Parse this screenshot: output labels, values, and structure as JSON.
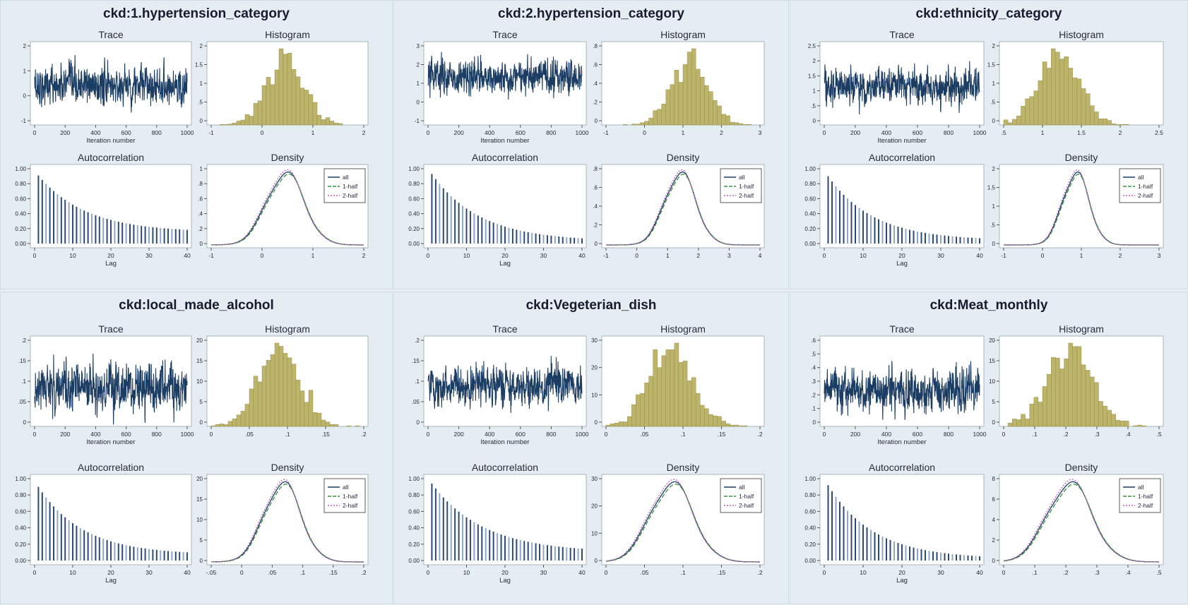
{
  "figure": {
    "subplot_titles": {
      "trace": "Trace",
      "histogram": "Histogram",
      "autocorrelation": "Autocorrelation",
      "density": "Density"
    },
    "trace_xlabel": "Iteration number",
    "ac_xlabel": "Lag",
    "legend_labels": [
      "all",
      "1-half",
      "2-half"
    ],
    "colors": {
      "trace": "#1c3d63",
      "histogram": "#bdb46b",
      "histogram_edge": "#8f8741",
      "acf": "#2b4a78",
      "density_all": "#1c3d63",
      "density_half1": "#3f8f3f",
      "density_half2": "#c060c0",
      "plot_bg": "#ffffff"
    }
  },
  "chart_data": [
    {
      "type": "bar",
      "title": "ckd:1.hypertension_category",
      "trace": {
        "xlim": [
          0,
          1000
        ],
        "xticks": [
          "0",
          "200",
          "400",
          "600",
          "800",
          "1000"
        ],
        "ylim": [
          -1.1,
          2.2
        ],
        "yticks": [
          "-1",
          "0",
          "1",
          "2"
        ],
        "mean": 0.45,
        "sd": 0.42,
        "phi": 0.3
      },
      "histogram": {
        "xlim": [
          -1.2,
          2.2
        ],
        "xticks": [
          "-1",
          "0",
          "1",
          "2"
        ],
        "yticks": [
          "0",
          ".5",
          "1",
          "1.5",
          "2"
        ],
        "center": 0.45,
        "sd": 0.42
      },
      "autocorrelation": {
        "xticks": [
          "0",
          "10",
          "20",
          "30",
          "40"
        ],
        "yticks": [
          "0.00",
          "0.20",
          "0.40",
          "0.60",
          "0.80",
          "1.00"
        ],
        "first": 0.91,
        "floor": 0.15,
        "rate": 0.08
      },
      "density": {
        "xlim": [
          -1.2,
          2.2
        ],
        "xticks": [
          "-1",
          "0",
          "1",
          "2"
        ],
        "yticks": [
          "0",
          ".2",
          ".4",
          ".6",
          ".8",
          "1"
        ],
        "center": 0.45,
        "sd": 0.42
      }
    },
    {
      "type": "bar",
      "title": "ckd:2.hypertension_category",
      "trace": {
        "xlim": [
          0,
          1000
        ],
        "xticks": [
          "0",
          "200",
          "400",
          "600",
          "800",
          "1000"
        ],
        "ylim": [
          -1.4,
          3.4
        ],
        "yticks": [
          "-1",
          "0",
          "1",
          "2",
          "3"
        ],
        "mean": 1.4,
        "sd": 0.55,
        "phi": 0.3
      },
      "histogram": {
        "xlim": [
          -1.1,
          3.5
        ],
        "xticks": [
          "-1",
          "0",
          "1",
          "2",
          "3"
        ],
        "yticks": [
          "0",
          ".2",
          ".4",
          ".6",
          ".8"
        ],
        "center": 1.4,
        "sd": 0.55
      },
      "autocorrelation": {
        "xticks": [
          "0",
          "10",
          "20",
          "30",
          "40"
        ],
        "yticks": [
          "0.00",
          "0.20",
          "0.40",
          "0.60",
          "0.80",
          "1.00"
        ],
        "first": 0.93,
        "floor": 0.03,
        "rate": 0.08
      },
      "density": {
        "xlim": [
          -1.2,
          4.2
        ],
        "xticks": [
          "-1",
          "0",
          "1",
          "2",
          "3",
          "4"
        ],
        "yticks": [
          "0",
          ".2",
          ".4",
          ".6",
          ".8"
        ],
        "center": 1.4,
        "sd": 0.55
      }
    },
    {
      "type": "bar",
      "title": "ckd:ethnicity_category",
      "trace": {
        "xlim": [
          0,
          1000
        ],
        "xticks": [
          "0",
          "200",
          "400",
          "600",
          "800",
          "1000"
        ],
        "ylim": [
          -0.6,
          2.6
        ],
        "yticks": [
          "0",
          ".5",
          "1",
          "1.5",
          "2",
          "2.5"
        ],
        "mean": 0.9,
        "sd": 0.38,
        "phi": 0.3
      },
      "histogram": {
        "xlim": [
          -0.1,
          2.6
        ],
        "xticks": [
          ".5",
          "1",
          "1.5",
          "2",
          "2.5"
        ],
        "yticks": [
          "0",
          ".5",
          "1",
          "1.5",
          "2"
        ],
        "center": 0.85,
        "sd": 0.36
      },
      "autocorrelation": {
        "xticks": [
          "0",
          "10",
          "20",
          "30",
          "40"
        ],
        "yticks": [
          "0.00",
          "0.20",
          "0.40",
          "0.60",
          "0.80",
          "1.00"
        ],
        "first": 0.9,
        "floor": 0.04,
        "rate": 0.085
      },
      "density": {
        "xlim": [
          -1.1,
          3.1
        ],
        "xticks": [
          "-1",
          "0",
          "1",
          "2",
          "3"
        ],
        "yticks": [
          "0",
          ".5",
          "1",
          "1.5",
          "2"
        ],
        "center": 0.85,
        "sd": 0.36
      }
    },
    {
      "type": "bar",
      "title": "ckd:local_made_alcohol",
      "trace": {
        "xlim": [
          0,
          1000
        ],
        "xticks": [
          "0",
          "200",
          "400",
          "600",
          "800",
          "1000"
        ],
        "ylim": [
          -0.02,
          0.22
        ],
        "yticks": [
          "0",
          ".05",
          ".1",
          ".15",
          ".2"
        ],
        "mean": 0.08,
        "sd": 0.035,
        "phi": 0.3
      },
      "histogram": {
        "xlim": [
          -0.04,
          0.22
        ],
        "xticks": [
          "0",
          ".05",
          ".1",
          ".15",
          ".2"
        ],
        "yticks": [
          "0",
          "5",
          "10",
          "15",
          "20"
        ],
        "center": 0.075,
        "sd": 0.035
      },
      "autocorrelation": {
        "xticks": [
          "0",
          "10",
          "20",
          "30",
          "40"
        ],
        "yticks": [
          "0.00",
          "0.20",
          "0.40",
          "0.60",
          "0.80",
          "1.00"
        ],
        "first": 0.9,
        "floor": 0.07,
        "rate": 0.085
      },
      "density": {
        "xlim": [
          -0.06,
          0.23
        ],
        "xticks": [
          "-.05",
          "0",
          ".05",
          ".1",
          ".15",
          ".2"
        ],
        "yticks": [
          "0",
          "5",
          "10",
          "15",
          "20"
        ],
        "center": 0.075,
        "sd": 0.035
      }
    },
    {
      "type": "bar",
      "title": "ckd:Vegeterian_dish",
      "trace": {
        "xlim": [
          0,
          1000
        ],
        "xticks": [
          "0",
          "200",
          "400",
          "600",
          "800",
          "1000"
        ],
        "ylim": [
          -0.02,
          0.22
        ],
        "yticks": [
          "0",
          ".05",
          ".1",
          ".15",
          ".2"
        ],
        "mean": 0.085,
        "sd": 0.028,
        "phi": 0.3
      },
      "histogram": {
        "xlim": [
          0,
          0.2
        ],
        "xticks": [
          "0",
          ".05",
          ".1",
          ".15",
          ".2"
        ],
        "yticks": [
          "0",
          "10",
          "20",
          "30"
        ],
        "center": 0.085,
        "sd": 0.028
      },
      "autocorrelation": {
        "xticks": [
          "0",
          "10",
          "20",
          "30",
          "40"
        ],
        "yticks": [
          "0.00",
          "0.20",
          "0.40",
          "0.60",
          "0.80",
          "1.00"
        ],
        "first": 0.94,
        "floor": 0.1,
        "rate": 0.075
      },
      "density": {
        "xlim": [
          0,
          0.2
        ],
        "xticks": [
          "0",
          ".05",
          ".1",
          ".15",
          ".2"
        ],
        "yticks": [
          "0",
          "10",
          "20",
          "30"
        ],
        "center": 0.085,
        "sd": 0.028
      }
    },
    {
      "type": "bar",
      "title": "ckd:Meat_monthly",
      "trace": {
        "xlim": [
          0,
          1000
        ],
        "xticks": [
          "0",
          "200",
          "400",
          "600",
          "800",
          "1000"
        ],
        "ylim": [
          -0.02,
          0.62
        ],
        "yticks": [
          "0",
          ".1",
          ".2",
          ".3",
          ".4",
          ".5",
          ".6"
        ],
        "mean": 0.23,
        "sd": 0.085,
        "phi": 0.3
      },
      "histogram": {
        "xlim": [
          0,
          0.52
        ],
        "xticks": [
          "0",
          ".1",
          ".2",
          ".3",
          ".4",
          ".5"
        ],
        "yticks": [
          "0",
          "5",
          "10",
          "15",
          "20"
        ],
        "center": 0.22,
        "sd": 0.075
      },
      "autocorrelation": {
        "xticks": [
          "0",
          "10",
          "20",
          "30",
          "40"
        ],
        "yticks": [
          "0.00",
          "0.20",
          "0.40",
          "0.60",
          "0.80",
          "1.00"
        ],
        "first": 0.92,
        "floor": 0.02,
        "rate": 0.085
      },
      "density": {
        "xlim": [
          0,
          0.52
        ],
        "xticks": [
          "0",
          ".1",
          ".2",
          ".3",
          ".4",
          ".5"
        ],
        "yticks": [
          "0",
          "2",
          "4",
          "6",
          "8"
        ],
        "center": 0.22,
        "sd": 0.075
      }
    }
  ]
}
